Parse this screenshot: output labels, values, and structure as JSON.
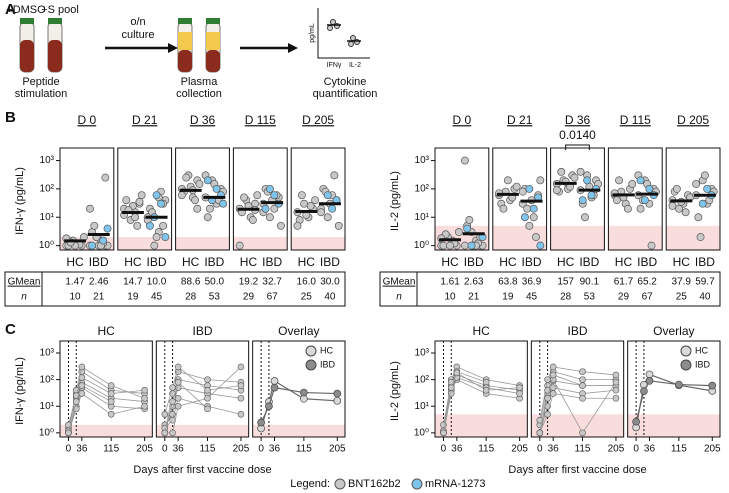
{
  "panel_labels": [
    "A",
    "B",
    "C"
  ],
  "panel_a": {
    "treatments": [
      "+DMSO",
      "+S pool"
    ],
    "arrow_label": [
      "o/n",
      "culture"
    ],
    "steps": [
      [
        "Peptide",
        "stimulation"
      ],
      [
        "Plasma",
        "collection"
      ],
      [
        "Cytokine",
        "quantification"
      ]
    ],
    "mini_ylabel": "pg/mL",
    "mini_xlabels": [
      "IFNγ",
      "IL-2"
    ]
  },
  "panel_b": {
    "day_labels": [
      "D 0",
      "D 21",
      "D 36",
      "D 115",
      "D 205"
    ],
    "groups": [
      "HC",
      "IBD"
    ],
    "table_labels": [
      "GMean",
      "n"
    ],
    "charts": [
      {
        "type": "dot",
        "ylabel": "IFN-γ (pg/mL)",
        "log": true,
        "ylim": [
          0.7,
          2000
        ],
        "yticks": [
          {
            "value": 1,
            "label": "10⁰"
          },
          {
            "value": 10,
            "label": "10¹"
          },
          {
            "value": 100,
            "label": "10²"
          },
          {
            "value": 1000,
            "label": "10³"
          }
        ],
        "lloq": 2,
        "days": [
          {
            "hc": {
              "gmean": 1.47,
              "n": 10,
              "bnt": [
                1,
                1,
                1.2,
                1.5,
                1,
                2,
                1.1,
                1,
                1.3,
                1.8
              ],
              "mrna": []
            },
            "ibd": {
              "gmean": 2.46,
              "n": 21,
              "bnt": [
                1,
                1,
                1.5,
                2,
                3,
                1,
                1.2,
                1,
                5,
                20,
                250,
                1,
                2
              ],
              "mrna": [
                1,
                4,
                1.5
              ]
            }
          },
          {
            "hc": {
              "gmean": 14.7,
              "n": 19,
              "bnt": [
                20,
                30,
                15,
                8,
                40,
                60,
                5,
                25,
                18,
                12,
                35,
                10
              ],
              "mrna": []
            },
            "ibd": {
              "gmean": 10,
              "gmean_label": "10.0",
              "n": 45,
              "bnt": [
                10,
                5,
                3,
                1,
                20,
                40,
                80,
                2,
                15,
                8,
                30,
                50
              ],
              "mrna": [
                10,
                5,
                2,
                30,
                60
              ]
            }
          },
          {
            "hc": {
              "gmean": 88.6,
              "n": 28,
              "bnt": [
                100,
                200,
                50,
                300,
                80,
                150,
                40,
                120,
                250,
                60,
                20,
                90
              ],
              "mrna": []
            },
            "ibd": {
              "gmean": 50,
              "gmean_label": "50.0",
              "n": 53,
              "bnt": [
                50,
                100,
                30,
                200,
                10,
                80,
                40,
                150,
                20,
                300
              ],
              "mrna": [
                60,
                100,
                40,
                200,
                30
              ]
            }
          },
          {
            "hc": {
              "gmean": 19.2,
              "n": 29,
              "bnt": [
                20,
                30,
                10,
                40,
                15,
                60,
                8,
                25,
                50,
                1,
                18
              ],
              "mrna": []
            },
            "ibd": {
              "gmean": 32.7,
              "n": 67,
              "bnt": [
                30,
                50,
                20,
                10,
                100,
                5,
                60,
                40,
                80,
                15
              ],
              "mrna": [
                30,
                60,
                100,
                20
              ]
            }
          },
          {
            "hc": {
              "gmean": 16,
              "gmean_label": "16.0",
              "n": 25,
              "bnt": [
                15,
                20,
                10,
                30,
                8,
                40,
                25,
                12,
                60,
                5
              ],
              "mrna": []
            },
            "ibd": {
              "gmean": 30,
              "gmean_label": "30.0",
              "n": 40,
              "bnt": [
                20,
                40,
                60,
                10,
                100,
                5,
                300,
                30,
                80,
                15
              ],
              "mrna": [
                40,
                20,
                60
              ]
            }
          }
        ]
      },
      {
        "type": "dot",
        "ylabel": "IL-2 (pg/mL)",
        "log": true,
        "ylim": [
          0.7,
          2000
        ],
        "yticks": [
          {
            "value": 1,
            "label": "10⁰"
          },
          {
            "value": 10,
            "label": "10¹"
          },
          {
            "value": 100,
            "label": "10²"
          },
          {
            "value": 1000,
            "label": "10³"
          }
        ],
        "lloq": 5,
        "days": [
          {
            "hc": {
              "gmean": 1.61,
              "n": 10,
              "bnt": [
                1,
                1,
                1.5,
                2,
                1,
                3,
                1.2,
                1,
                2.5,
                1.8
              ],
              "mrna": []
            },
            "ibd": {
              "gmean": 2.63,
              "n": 21,
              "bnt": [
                1,
                1,
                1.5,
                3,
                5,
                1,
                1.2,
                1,
                8,
                1000,
                2,
                1
              ],
              "mrna": [
                1,
                4,
                2
              ]
            }
          },
          {
            "hc": {
              "gmean": 63.8,
              "n": 19,
              "bnt": [
                60,
                100,
                40,
                80,
                30,
                120,
                50,
                200,
                20,
                70
              ],
              "mrna": []
            },
            "ibd": {
              "gmean": 36.9,
              "n": 45,
              "bnt": [
                30,
                60,
                10,
                5,
                100,
                200,
                2,
                40,
                20,
                80
              ],
              "mrna": [
                50,
                20,
                100,
                10,
                1
              ]
            }
          },
          {
            "hc": {
              "gmean": 157,
              "n": 28,
              "bnt": [
                150,
                300,
                100,
                200,
                80,
                250,
                120,
                180,
                400,
                90
              ],
              "mrna": []
            },
            "ibd": {
              "gmean": 90.1,
              "n": 53,
              "bnt": [
                90,
                200,
                50,
                300,
                30,
                150,
                60,
                120,
                10,
                400
              ],
              "mrna": [
                100,
                60,
                200,
                40
              ]
            }
          },
          {
            "hc": {
              "gmean": 61.7,
              "n": 29,
              "bnt": [
                60,
                100,
                30,
                80,
                40,
                150,
                20,
                50,
                200,
                70
              ],
              "mrna": []
            },
            "ibd": {
              "gmean": 65.2,
              "n": 67,
              "bnt": [
                60,
                100,
                30,
                200,
                20,
                80,
                1,
                150,
                40,
                300
              ],
              "mrna": [
                60,
                100,
                40,
                200
              ]
            }
          },
          {
            "hc": {
              "gmean": 37.9,
              "n": 25,
              "bnt": [
                40,
                60,
                30,
                20,
                80,
                50,
                15,
                35,
                100,
                25
              ],
              "mrna": []
            },
            "ibd": {
              "gmean": 59.7,
              "n": 40,
              "bnt": [
                60,
                100,
                30,
                200,
                10,
                80,
                40,
                300,
                2,
                150
              ],
              "mrna": [
                60,
                100,
                30
              ]
            },
            "p_value_days": null
          }
        ]
      }
    ]
  },
  "p_value": {
    "chart": 1,
    "day": 2,
    "label": "0.0140"
  },
  "panel_c": {
    "days": [
      0,
      21,
      36,
      115,
      205
    ],
    "xlim": [
      -12,
      215
    ],
    "xticks": [
      0,
      36,
      115,
      205
    ],
    "dose_days": [
      0,
      21
    ],
    "xlabel": "Days after first vaccine dose",
    "titles": [
      "HC",
      "IBD",
      "Overlay"
    ],
    "legend": [
      {
        "name": "HC",
        "color": "#d9d9d9"
      },
      {
        "name": "IBD",
        "color": "#8c8c8c"
      }
    ],
    "charts": [
      {
        "hc": [
          [
            1,
            20,
            80,
            20,
            15
          ],
          [
            1.5,
            30,
            200,
            40,
            30
          ],
          [
            1,
            10,
            50,
            10,
            8
          ],
          [
            1.2,
            40,
            300,
            60,
            20
          ],
          [
            1,
            8,
            30,
            5,
            10
          ],
          [
            2,
            25,
            120,
            30,
            40
          ],
          [
            1,
            15,
            60,
            15,
            null
          ]
        ],
        "ibd": [
          [
            1,
            10,
            50,
            30,
            20
          ],
          [
            2,
            5,
            100,
            60,
            40
          ],
          [
            1,
            30,
            200,
            100,
            80
          ],
          [
            1.5,
            3,
            20,
            10,
            5
          ],
          [
            5,
            50,
            300,
            40,
            60
          ],
          [
            1,
            1,
            10,
            20,
            300
          ],
          [
            1,
            15,
            80,
            8,
            null
          ]
        ]
      },
      {
        "hc": [
          [
            1,
            60,
            150,
            60,
            40
          ],
          [
            1.2,
            100,
            300,
            100,
            60
          ],
          [
            1,
            40,
            100,
            30,
            20
          ],
          [
            2,
            80,
            200,
            80,
            null
          ],
          [
            1,
            30,
            120,
            50,
            30
          ],
          [
            1,
            50,
            180,
            40,
            50
          ]
        ],
        "ibd": [
          [
            1,
            30,
            90,
            60,
            60
          ],
          [
            2,
            60,
            200,
            100,
            100
          ],
          [
            1,
            10,
            50,
            30,
            40
          ],
          [
            3,
            100,
            300,
            200,
            150
          ],
          [
            1,
            5,
            30,
            20,
            20
          ],
          [
            1,
            40,
            100,
            1,
            80
          ],
          [
            1,
            20,
            150,
            60,
            null
          ]
        ]
      }
    ]
  },
  "legend": {
    "title": "Legend:",
    "items": [
      {
        "name": "BNT162b2",
        "color": "#c8c8c8"
      },
      {
        "name": "mRNA-1273",
        "color": "#7fc4ea"
      }
    ]
  }
}
